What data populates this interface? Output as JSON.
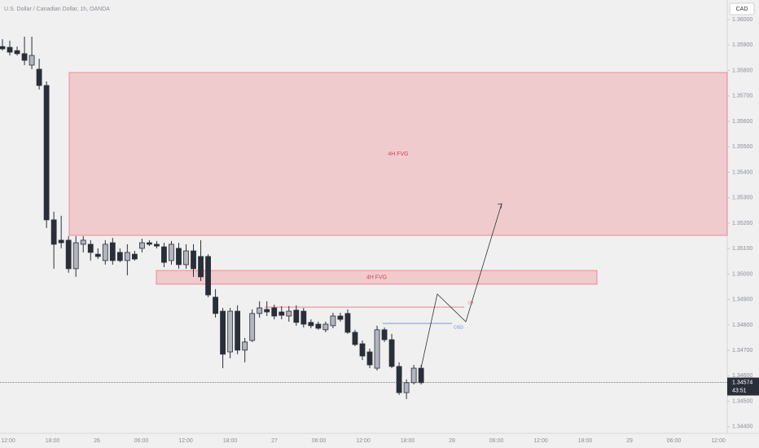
{
  "chart_data": {
    "type": "candlestick",
    "title": "U.S. Dollar / Canadian Dollar, 1h, OANDA",
    "currency": "CAD",
    "ylim": [
      1.34374,
      1.36077
    ],
    "yticks": [
      {
        "value": 1.36,
        "label": "1.36000"
      },
      {
        "value": 1.359,
        "label": "1.35900"
      },
      {
        "value": 1.358,
        "label": "1.35800"
      },
      {
        "value": 1.357,
        "label": "1.35700"
      },
      {
        "value": 1.356,
        "label": "1.35600"
      },
      {
        "value": 1.355,
        "label": "1.35500"
      },
      {
        "value": 1.354,
        "label": "1.35400"
      },
      {
        "value": 1.353,
        "label": "1.35300"
      },
      {
        "value": 1.352,
        "label": "1.35200"
      },
      {
        "value": 1.351,
        "label": "1.35100"
      },
      {
        "value": 1.35,
        "label": "1.35000"
      },
      {
        "value": 1.349,
        "label": "1.34900"
      },
      {
        "value": 1.348,
        "label": "1.34800"
      },
      {
        "value": 1.347,
        "label": "1.34700"
      },
      {
        "value": 1.346,
        "label": "1.34600"
      },
      {
        "value": 1.345,
        "label": "1.34500"
      },
      {
        "value": 1.344,
        "label": "1.34400"
      }
    ],
    "xtick_labels": [
      "12:00",
      "18:00",
      "26",
      "06:00",
      "12:00",
      "18:00",
      "27",
      "06:00",
      "12:00",
      "18:00",
      "28",
      "06:00",
      "12:00",
      "18:00",
      "29",
      "06:00",
      "12:00"
    ],
    "last_price": 1.34574,
    "countdown": "43:51",
    "bull_color": "#b2b5be",
    "bear_color": "#2a2e39",
    "ohlc": [
      [
        1.35894,
        1.35923,
        1.35878,
        1.35885
      ],
      [
        1.35891,
        1.35917,
        1.35859,
        1.35872
      ],
      [
        1.35878,
        1.35894,
        1.35859,
        1.35866
      ],
      [
        1.35866,
        1.35933,
        1.35821,
        1.3584
      ],
      [
        1.35821,
        1.35933,
        1.35805,
        1.35859
      ],
      [
        1.35805,
        1.35846,
        1.35725,
        1.35741
      ],
      [
        1.35741,
        1.35757,
        1.35181,
        1.35213
      ],
      [
        1.35213,
        1.35245,
        1.35021,
        1.35117
      ],
      [
        1.35133,
        1.35229,
        1.35101,
        1.35123
      ],
      [
        1.35133,
        1.35149,
        1.35005,
        1.35021
      ],
      [
        1.35021,
        1.35149,
        1.34989,
        1.35123
      ],
      [
        1.35117,
        1.35149,
        1.35085,
        1.35133
      ],
      [
        1.35117,
        1.35133,
        1.35053,
        1.35085
      ],
      [
        1.35078,
        1.35101,
        1.35059,
        1.35069
      ],
      [
        1.35053,
        1.35133,
        1.35037,
        1.35117
      ],
      [
        1.35123,
        1.35142,
        1.35037,
        1.35053
      ],
      [
        1.35085,
        1.35101,
        1.35046,
        1.35053
      ],
      [
        1.35053,
        1.35117,
        1.34995,
        1.35085
      ],
      [
        1.35078,
        1.35091,
        1.35053,
        1.35059
      ],
      [
        1.35101,
        1.35139,
        1.35085,
        1.35123
      ],
      [
        1.35123,
        1.35133,
        1.3511,
        1.35117
      ],
      [
        1.35117,
        1.3513,
        1.35101,
        1.3511
      ],
      [
        1.35107,
        1.35123,
        1.35027,
        1.35046
      ],
      [
        1.35053,
        1.3513,
        1.35037,
        1.35117
      ],
      [
        1.35101,
        1.35123,
        1.35021,
        1.35037
      ],
      [
        1.35037,
        1.35117,
        1.35021,
        1.35091
      ],
      [
        1.35091,
        1.35117,
        1.34989,
        1.35021
      ],
      [
        1.35069,
        1.35133,
        1.34973,
        1.34989
      ],
      [
        1.35069,
        1.35078,
        1.34909,
        1.34918
      ],
      [
        1.34909,
        1.34941,
        1.34829,
        1.34845
      ],
      [
        1.34854,
        1.34867,
        1.3463,
        1.34685
      ],
      [
        1.34694,
        1.34867,
        1.34669,
        1.34854
      ],
      [
        1.34854,
        1.34877,
        1.34685,
        1.34701
      ],
      [
        1.34701,
        1.34749,
        1.34653,
        1.34733
      ],
      [
        1.34739,
        1.34861,
        1.34733,
        1.34845
      ],
      [
        1.34845,
        1.34893,
        1.34829,
        1.34867
      ],
      [
        1.34861,
        1.34893,
        1.34835,
        1.34851
      ],
      [
        1.34867,
        1.3488,
        1.34822,
        1.34835
      ],
      [
        1.34851,
        1.34874,
        1.34822,
        1.34838
      ],
      [
        1.34835,
        1.34874,
        1.34813,
        1.34854
      ],
      [
        1.34858,
        1.34877,
        1.34797,
        1.3481
      ],
      [
        1.34854,
        1.34867,
        1.3479,
        1.34803
      ],
      [
        1.3481,
        1.34822,
        1.34787,
        1.34797
      ],
      [
        1.34803,
        1.34813,
        1.34781,
        1.34787
      ],
      [
        1.34781,
        1.34813,
        1.34771,
        1.34803
      ],
      [
        1.34797,
        1.34848,
        1.34787,
        1.34835
      ],
      [
        1.34835,
        1.34848,
        1.34813,
        1.34822
      ],
      [
        1.34845,
        1.34861,
        1.34765,
        1.34771
      ],
      [
        1.34771,
        1.34781,
        1.34717,
        1.34723
      ],
      [
        1.34726,
        1.34739,
        1.34662,
        1.34678
      ],
      [
        1.34694,
        1.34707,
        1.3463,
        1.34643
      ],
      [
        1.3463,
        1.34797,
        1.34621,
        1.34781
      ],
      [
        1.34781,
        1.3479,
        1.34733,
        1.34742
      ],
      [
        1.34742,
        1.34765,
        1.3463,
        1.34637
      ],
      [
        1.34637,
        1.34653,
        1.34525,
        1.34534
      ],
      [
        1.34534,
        1.34586,
        1.34509,
        1.34573
      ],
      [
        1.34573,
        1.34643,
        1.34566,
        1.3463
      ],
      [
        1.3463,
        1.34643,
        1.34566,
        1.34573
      ]
    ],
    "zones": [
      {
        "label": "4H FVG",
        "top": 1.35792,
        "bottom": 1.35152
      },
      {
        "label": "4H FVG",
        "top": 1.35014,
        "bottom": 1.3496
      }
    ],
    "levels": [
      {
        "label": "OB",
        "value": 1.3487,
        "color": "#f0747c"
      },
      {
        "label": "CISD",
        "value": 1.34806,
        "color": "#5b8fd9"
      }
    ]
  }
}
